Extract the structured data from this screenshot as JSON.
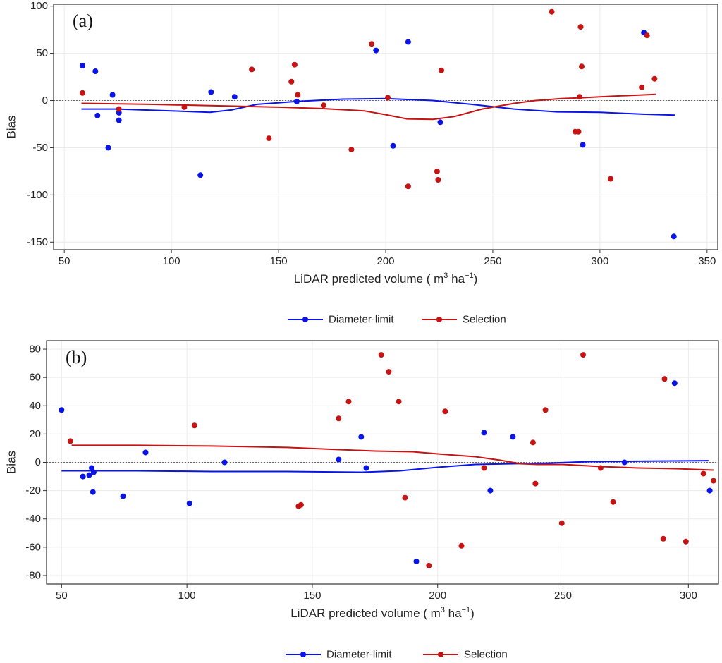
{
  "chart_data": [
    {
      "type": "scatter",
      "panel_label": "(a)",
      "xlabel_prefix": "LiDAR predicted volume ( m",
      "xlabel_sup1": "3",
      "xlabel_mid": " ha",
      "xlabel_sup2": "−1",
      "xlabel_suffix": ")",
      "ylabel": "Bias",
      "xlim": [
        45,
        355
      ],
      "ylim": [
        -158,
        102
      ],
      "xticks": [
        50,
        100,
        150,
        200,
        250,
        300,
        350
      ],
      "yticks": [
        -150,
        -100,
        -50,
        0,
        50,
        100
      ],
      "zero_line": true,
      "series": [
        {
          "name": "Diameter-limit",
          "color": "#0a14e6",
          "points": [
            [
              58.5,
              37
            ],
            [
              64.5,
              31
            ],
            [
              65.5,
              -16
            ],
            [
              70.5,
              -50
            ],
            [
              72.5,
              6
            ],
            [
              75.5,
              -21
            ],
            [
              75.5,
              -13
            ],
            [
              113.5,
              -79
            ],
            [
              118.5,
              9
            ],
            [
              129.5,
              4
            ],
            [
              158.5,
              -1
            ],
            [
              195.5,
              53
            ],
            [
              203.5,
              -48
            ],
            [
              210.5,
              62
            ],
            [
              225.5,
              -23
            ],
            [
              292,
              -47
            ],
            [
              320.5,
              72
            ],
            [
              334.5,
              -144
            ]
          ],
          "smooth": [
            [
              58,
              -9
            ],
            [
              75,
              -9
            ],
            [
              100,
              -11
            ],
            [
              118,
              -12.5
            ],
            [
              128,
              -10
            ],
            [
              140,
              -4
            ],
            [
              158,
              -1
            ],
            [
              180,
              1.5
            ],
            [
              200,
              2
            ],
            [
              222,
              0
            ],
            [
              240,
              -4
            ],
            [
              260,
              -9
            ],
            [
              280,
              -12
            ],
            [
              300,
              -12.5
            ],
            [
              320,
              -14.5
            ],
            [
              335,
              -15.5
            ]
          ]
        },
        {
          "name": "Selection",
          "color": "#c41414",
          "points": [
            [
              58.5,
              8
            ],
            [
              75.5,
              -9
            ],
            [
              106,
              -7
            ],
            [
              137.5,
              33
            ],
            [
              145.5,
              -40
            ],
            [
              156,
              20
            ],
            [
              157.5,
              38
            ],
            [
              159,
              6
            ],
            [
              171,
              -5
            ],
            [
              184,
              -52
            ],
            [
              193.5,
              60
            ],
            [
              201,
              3
            ],
            [
              210.5,
              -91
            ],
            [
              224,
              -75
            ],
            [
              224.5,
              -84
            ],
            [
              226,
              32
            ],
            [
              277.5,
              94
            ],
            [
              288.5,
              -33
            ],
            [
              290,
              -33
            ],
            [
              290.5,
              4
            ],
            [
              291,
              78
            ],
            [
              291.5,
              36
            ],
            [
              305,
              -83
            ],
            [
              319.5,
              14
            ],
            [
              322,
              69
            ],
            [
              325.5,
              23
            ]
          ],
          "smooth": [
            [
              58,
              -3
            ],
            [
              90,
              -4
            ],
            [
              120,
              -5.5
            ],
            [
              150,
              -7
            ],
            [
              170,
              -8.5
            ],
            [
              190,
              -11
            ],
            [
              200,
              -15
            ],
            [
              210,
              -19.5
            ],
            [
              222,
              -20
            ],
            [
              232,
              -17
            ],
            [
              245,
              -9
            ],
            [
              260,
              -3
            ],
            [
              270,
              0
            ],
            [
              282,
              2
            ],
            [
              292,
              3
            ],
            [
              300,
              4
            ],
            [
              310,
              5
            ],
            [
              326,
              6.5
            ]
          ]
        }
      ]
    },
    {
      "type": "scatter",
      "panel_label": "(b)",
      "xlabel_prefix": "LiDAR predicted volume ( m",
      "xlabel_sup1": "3",
      "xlabel_mid": " ha",
      "xlabel_sup2": "−1",
      "xlabel_suffix": ")",
      "ylabel": "Bias",
      "xlim": [
        44,
        312
      ],
      "ylim": [
        -86,
        86
      ],
      "xticks": [
        50,
        100,
        150,
        200,
        250,
        300
      ],
      "yticks": [
        -80,
        -60,
        -40,
        -20,
        0,
        20,
        40,
        60,
        80
      ],
      "zero_line": true,
      "series": [
        {
          "name": "Diameter-limit",
          "color": "#0a14e6",
          "points": [
            [
              50,
              37
            ],
            [
              58.5,
              -10
            ],
            [
              61,
              -9
            ],
            [
              62,
              -4
            ],
            [
              62.5,
              -21
            ],
            [
              62.8,
              -7
            ],
            [
              74.5,
              -24
            ],
            [
              83.5,
              7
            ],
            [
              101,
              -29
            ],
            [
              115,
              0
            ],
            [
              160.5,
              2
            ],
            [
              169.5,
              18
            ],
            [
              171.5,
              -4
            ],
            [
              191.5,
              -70
            ],
            [
              218.5,
              21
            ],
            [
              221,
              -20
            ],
            [
              230,
              18
            ],
            [
              274.5,
              0
            ],
            [
              294.5,
              56
            ],
            [
              308.5,
              -20
            ]
          ],
          "smooth": [
            [
              50,
              -6
            ],
            [
              80,
              -6
            ],
            [
              110,
              -6.5
            ],
            [
              140,
              -6.5
            ],
            [
              170,
              -7
            ],
            [
              185,
              -6
            ],
            [
              200,
              -3.5
            ],
            [
              215,
              -1.5
            ],
            [
              230,
              -1
            ],
            [
              245,
              -0.5
            ],
            [
              260,
              0.5
            ],
            [
              280,
              0.8
            ],
            [
              308,
              1.2
            ]
          ]
        },
        {
          "name": "Selection",
          "color": "#c41414",
          "points": [
            [
              53.5,
              15
            ],
            [
              103,
              26
            ],
            [
              144.5,
              -31
            ],
            [
              145.5,
              -30
            ],
            [
              160.5,
              31
            ],
            [
              164.5,
              43
            ],
            [
              177.5,
              76
            ],
            [
              180.5,
              64
            ],
            [
              184.5,
              43
            ],
            [
              187,
              -25
            ],
            [
              196.5,
              -73
            ],
            [
              203,
              36
            ],
            [
              209.5,
              -59
            ],
            [
              218.5,
              -4
            ],
            [
              238,
              14
            ],
            [
              239,
              -15
            ],
            [
              243,
              37
            ],
            [
              249.5,
              -43
            ],
            [
              258,
              76
            ],
            [
              265,
              -4
            ],
            [
              270,
              -28
            ],
            [
              290,
              -54
            ],
            [
              290.5,
              59
            ],
            [
              299,
              -56
            ],
            [
              306,
              -8
            ],
            [
              310,
              -13
            ]
          ],
          "smooth": [
            [
              54,
              12
            ],
            [
              80,
              12
            ],
            [
              110,
              11.5
            ],
            [
              140,
              10.5
            ],
            [
              160,
              9
            ],
            [
              175,
              8
            ],
            [
              190,
              7.5
            ],
            [
              200,
              6
            ],
            [
              215,
              4
            ],
            [
              225,
              1.5
            ],
            [
              233,
              -1
            ],
            [
              240,
              -1.5
            ],
            [
              250,
              -1.5
            ],
            [
              265,
              -3
            ],
            [
              280,
              -4
            ],
            [
              295,
              -4.5
            ],
            [
              310,
              -5.5
            ]
          ]
        }
      ]
    }
  ]
}
